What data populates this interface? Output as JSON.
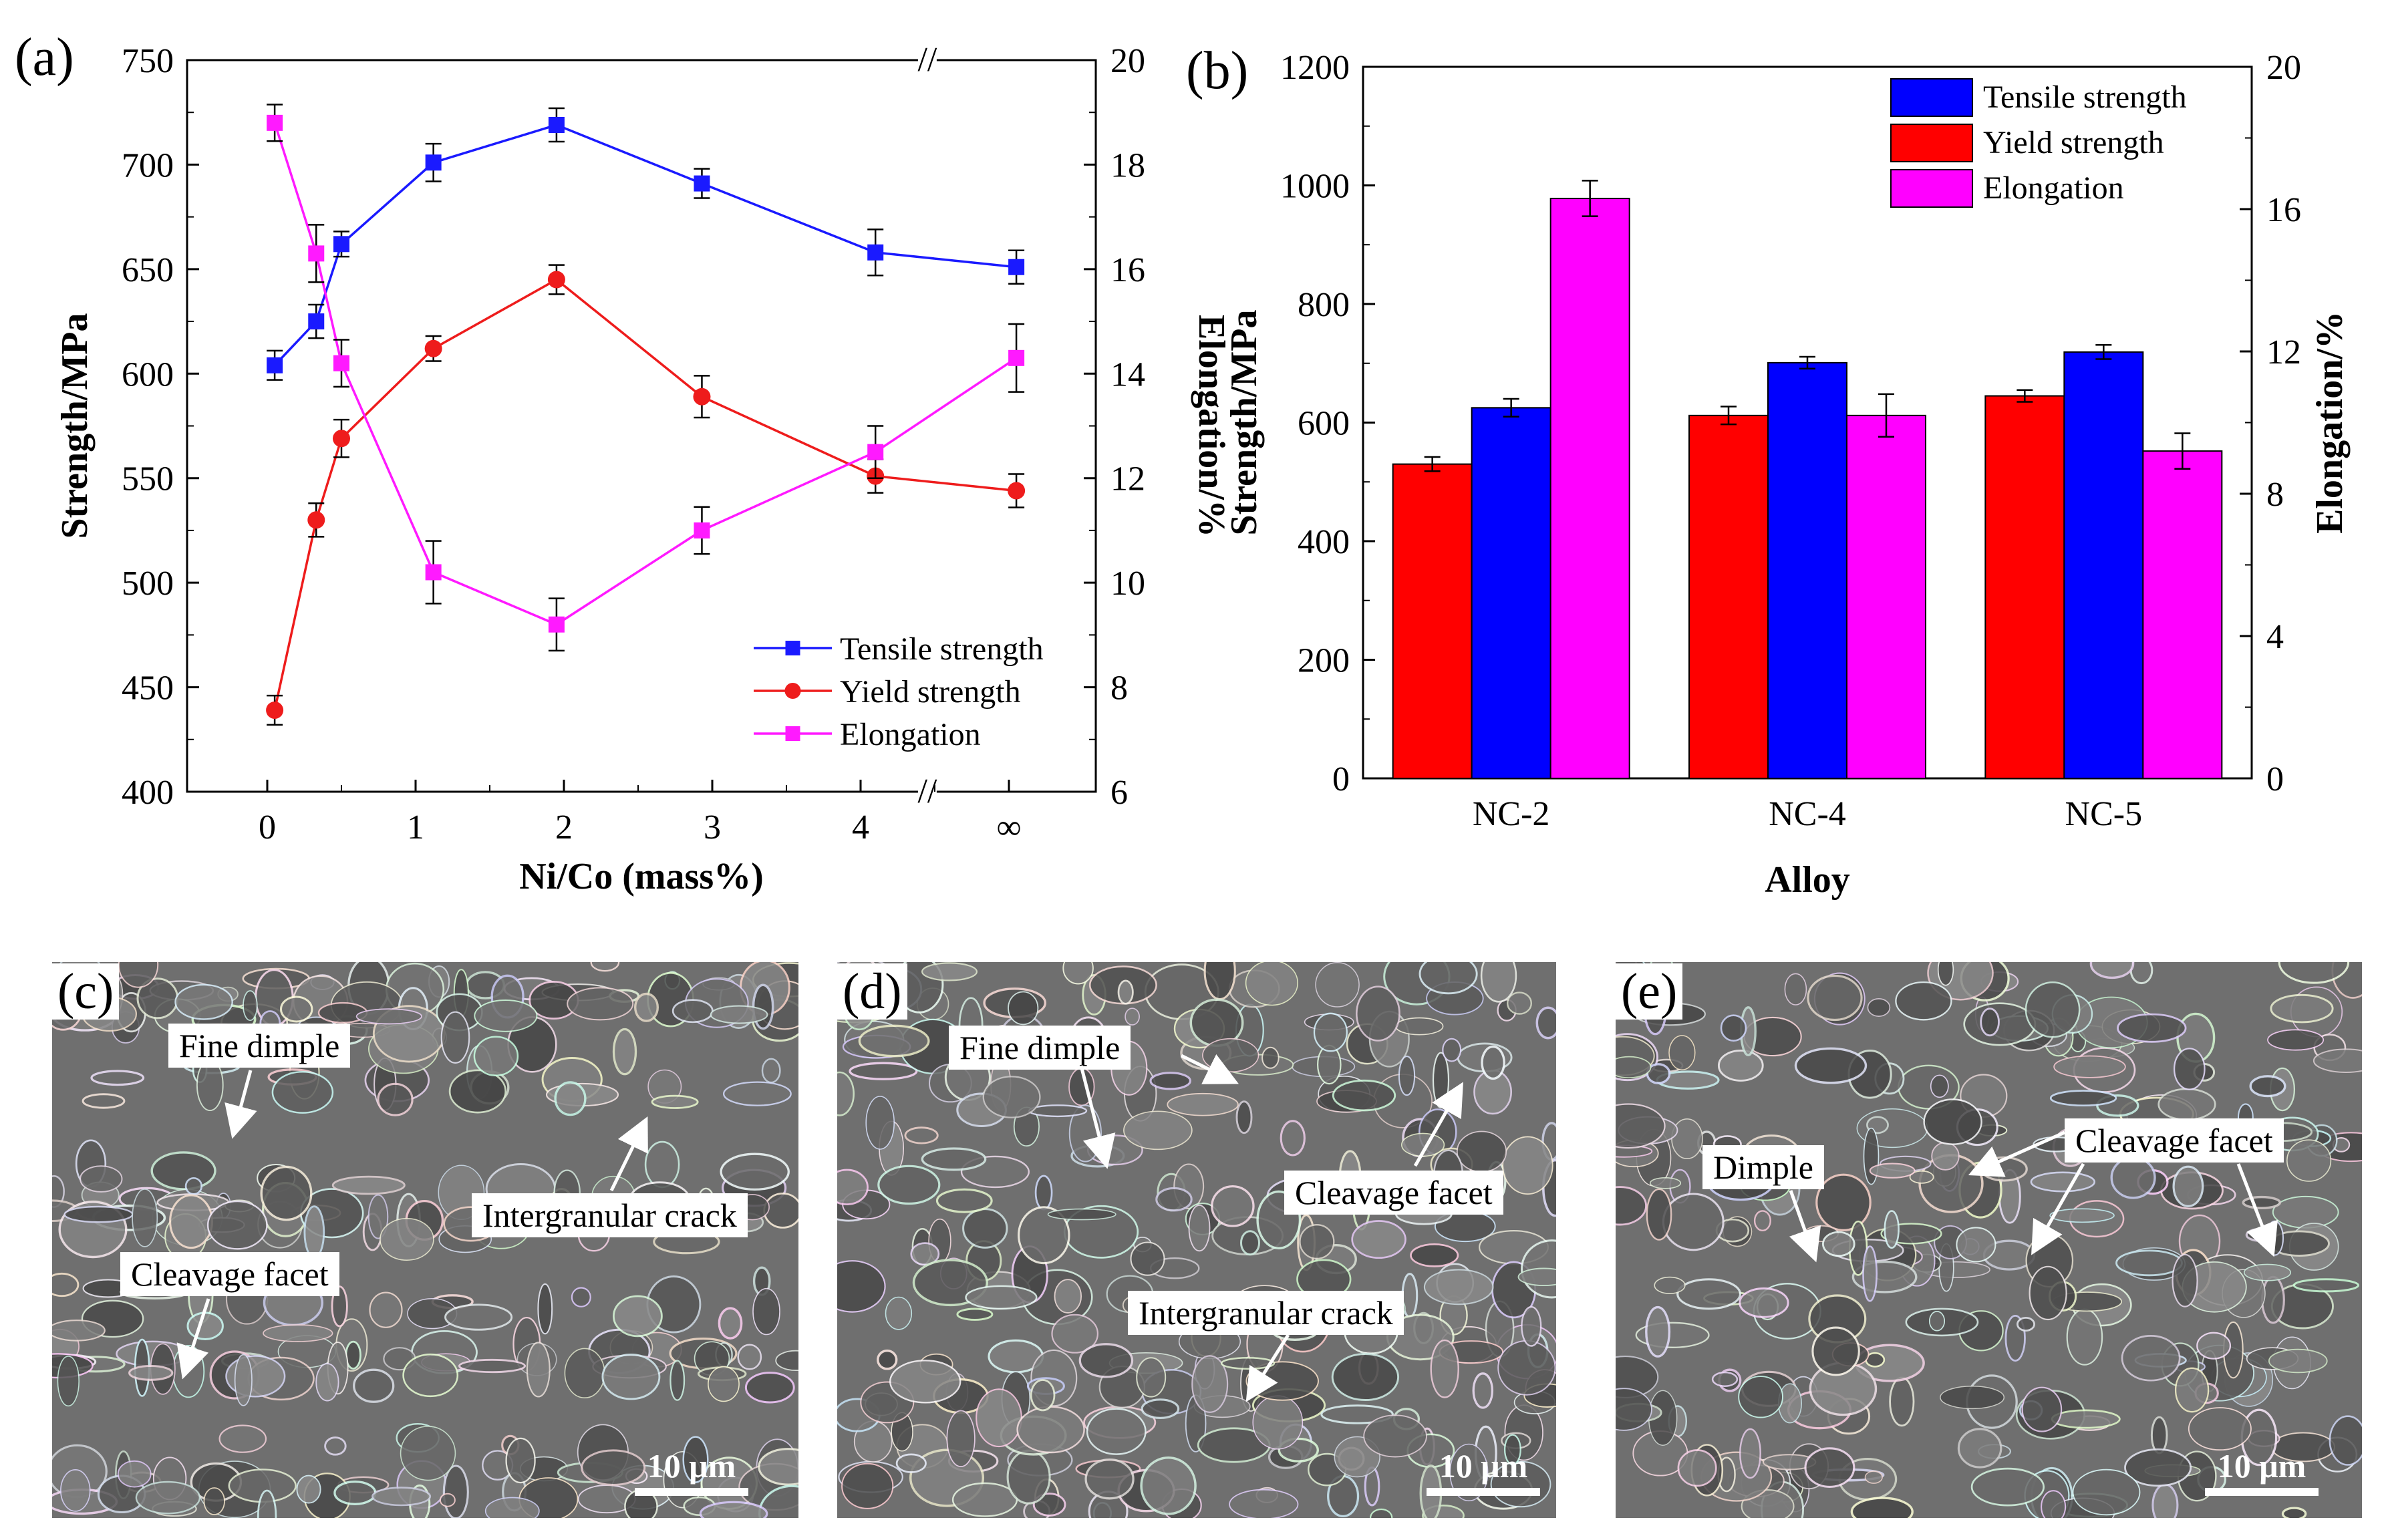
{
  "chart_data": [
    {
      "type": "line",
      "panel_label": "(a)",
      "xlabel": "Ni/Co (mass%)",
      "ylabel": "Strength/MPa",
      "y2label": "Elongation/%",
      "x_categories": [
        "0",
        "1",
        "2",
        "3",
        "4",
        "∞"
      ],
      "ylim": [
        400,
        750
      ],
      "y_ticks": [
        "400",
        "450",
        "500",
        "550",
        "600",
        "650",
        "700",
        "750"
      ],
      "y2lim": [
        6,
        20
      ],
      "y2_ticks": [
        "6",
        "8",
        "10",
        "12",
        "14",
        "16",
        "18",
        "20"
      ],
      "axis_break_symbol": "//",
      "series": [
        {
          "name": "Tensile strength",
          "color": "#1a1aff",
          "marker": "square",
          "axis": "left",
          "x": [
            0.05,
            0.33,
            0.5,
            1.12,
            1.95,
            2.93,
            4.1,
            5.05
          ],
          "values": [
            604,
            625,
            662,
            701,
            719,
            691,
            658,
            651
          ],
          "errors": [
            7,
            8,
            6,
            9,
            8,
            7,
            11,
            8
          ]
        },
        {
          "name": "Yield strength",
          "color": "#ee1c1c",
          "marker": "circle",
          "axis": "left",
          "x": [
            0.05,
            0.33,
            0.5,
            1.12,
            1.95,
            2.93,
            4.1,
            5.05
          ],
          "values": [
            439,
            530,
            569,
            612,
            645,
            589,
            551,
            544
          ],
          "errors": [
            7,
            8,
            9,
            6,
            7,
            10,
            8,
            8
          ]
        },
        {
          "name": "Elongation",
          "color": "#ff1aff",
          "marker": "square",
          "axis": "right",
          "x": [
            0.05,
            0.33,
            0.5,
            1.12,
            1.95,
            2.93,
            4.1,
            5.05
          ],
          "values": [
            18.8,
            16.3,
            14.2,
            10.2,
            9.2,
            11.0,
            12.5,
            14.3
          ],
          "errors": [
            0.35,
            0.55,
            0.45,
            0.6,
            0.5,
            0.45,
            0.5,
            0.65
          ]
        }
      ]
    },
    {
      "type": "bar",
      "panel_label": "(b)",
      "xlabel": "Alloy",
      "ylabel": "Strength/MPa",
      "y2label": "Elongation/%",
      "categories": [
        "NC-2",
        "NC-4",
        "NC-5"
      ],
      "ylim": [
        0,
        1200
      ],
      "y_ticks": [
        "0",
        "200",
        "400",
        "600",
        "800",
        "1000",
        "1200"
      ],
      "y2lim": [
        0,
        20
      ],
      "y2_ticks": [
        "0",
        "4",
        "8",
        "12",
        "16",
        "20"
      ],
      "legend": [
        "Tensile strength",
        "Yield strength",
        "Elongation"
      ],
      "legend_colors": [
        "#0000ff",
        "#ff0000",
        "#ff00ff"
      ],
      "groups": [
        {
          "bars": [
            {
              "series": "Yield strength",
              "color": "#ff0000",
              "axis": "left",
              "value": 530,
              "error": 12
            },
            {
              "series": "Tensile strength",
              "color": "#0000ff",
              "axis": "left",
              "value": 625,
              "error": 15
            },
            {
              "series": "Elongation",
              "color": "#ff00ff",
              "axis": "right",
              "value": 16.3,
              "error": 0.5
            }
          ]
        },
        {
          "bars": [
            {
              "series": "Yield strength",
              "color": "#ff0000",
              "axis": "left",
              "value": 612,
              "error": 15
            },
            {
              "series": "Tensile strength",
              "color": "#0000ff",
              "axis": "left",
              "value": 701,
              "error": 10
            },
            {
              "series": "Elongation",
              "color": "#ff00ff",
              "axis": "right",
              "value": 10.2,
              "error": 0.6
            }
          ]
        },
        {
          "bars": [
            {
              "series": "Yield strength",
              "color": "#ff0000",
              "axis": "left",
              "value": 645,
              "error": 10
            },
            {
              "series": "Tensile strength",
              "color": "#0000ff",
              "axis": "left",
              "value": 719,
              "error": 12
            },
            {
              "series": "Elongation",
              "color": "#ff00ff",
              "axis": "right",
              "value": 9.2,
              "error": 0.5
            }
          ]
        }
      ]
    }
  ],
  "micrographs": [
    {
      "label": "(c)",
      "scale": "10 μm",
      "callouts": [
        "Fine dimple",
        "Intergranular crack",
        "Cleavage facet"
      ]
    },
    {
      "label": "(d)",
      "scale": "10 μm",
      "callouts": [
        "Fine dimple",
        "Cleavage facet",
        "Intergranular crack"
      ]
    },
    {
      "label": "(e)",
      "scale": "10 μm",
      "callouts": [
        "Dimple",
        "Cleavage facet"
      ]
    }
  ]
}
